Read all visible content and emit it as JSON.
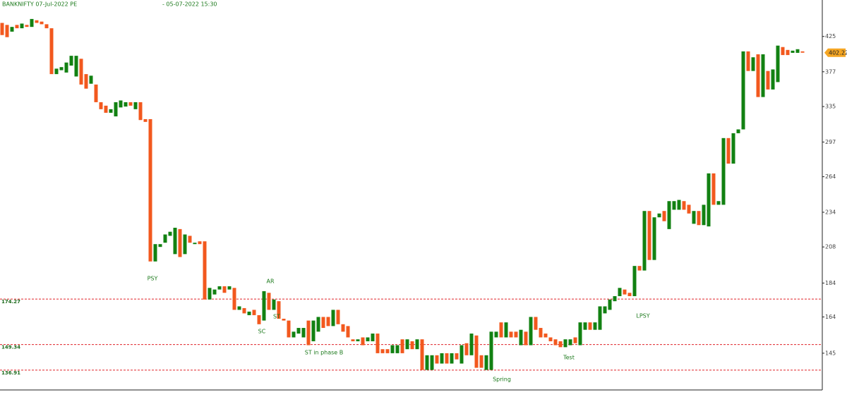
{
  "chart_data": {
    "type": "candlestick",
    "title": "BANKNIFTY 07-Jul-2022 PE",
    "subtitle": "- 05-07-2022 15:30",
    "log_scale": true,
    "ylim": [
      128,
      481
    ],
    "yticks": [
      145,
      164,
      184,
      208,
      234,
      264,
      297,
      335,
      377,
      425
    ],
    "up_color": "#128112",
    "down_color": "#f2581e",
    "level_color": "#e0242a",
    "levels": [
      174.27,
      149.34,
      136.91
    ],
    "annotations": [
      "PSY",
      "AR",
      "ST",
      "SC",
      "ST in phase B",
      "Spring",
      "Test",
      "LPSY"
    ],
    "open": [
      445,
      442,
      432,
      442,
      437,
      442,
      439,
      449,
      447,
      443,
      437,
      374,
      379,
      376,
      385,
      371,
      394,
      374,
      362,
      361,
      340,
      336,
      328,
      324,
      334,
      335,
      340,
      332,
      340,
      321,
      321,
      198,
      208,
      211,
      216,
      203,
      221,
      203,
      216,
      210,
      212,
      212,
      174,
      177,
      180,
      182,
      180,
      181,
      168,
      169,
      165,
      168,
      165,
      162,
      178,
      168,
      173,
      163,
      162,
      153,
      155,
      153,
      162,
      151,
      156,
      164,
      164,
      159,
      168,
      160,
      159,
      152,
      151,
      153,
      151,
      151,
      155,
      147,
      147,
      145,
      145,
      152,
      147,
      151,
      147,
      152,
      137,
      137,
      144,
      140,
      145,
      140,
      145,
      140,
      150,
      144,
      154,
      144,
      137,
      137,
      153,
      161,
      153,
      156,
      156,
      149,
      156,
      149,
      164,
      158,
      155,
      153,
      152,
      151,
      148,
      149,
      153,
      149,
      157,
      161,
      157,
      157,
      166,
      168,
      173,
      176,
      180,
      178,
      176,
      195,
      192,
      235,
      199,
      230,
      235,
      221,
      236,
      236,
      243,
      240,
      225,
      235,
      224,
      223,
      267,
      240,
      240,
      301,
      276,
      306,
      310,
      404,
      378,
      400,
      346,
      378,
      355,
      364,
      410,
      406,
      402,
      402,
      404
    ],
    "close": [
      427,
      424,
      439,
      437,
      444,
      439,
      451,
      445,
      443,
      437,
      374,
      381,
      383,
      389,
      398,
      398,
      361,
      356,
      372,
      340,
      332,
      328,
      332,
      340,
      342,
      340,
      336,
      340,
      320,
      318,
      198,
      210,
      210,
      217,
      219,
      222,
      201,
      217,
      211,
      211,
      210,
      174,
      181,
      180,
      182,
      178,
      182,
      168,
      170,
      166,
      167,
      165,
      160,
      179,
      168,
      174,
      163,
      162,
      153,
      156,
      158,
      158,
      149,
      162,
      164,
      158,
      159,
      168,
      160,
      156,
      153,
      151,
      152,
      149,
      153,
      155,
      145,
      145,
      145,
      149,
      149,
      145,
      152,
      147,
      152,
      137,
      144,
      144,
      140,
      145,
      140,
      145,
      142,
      149,
      144,
      155,
      138,
      138,
      144,
      156,
      156,
      153,
      161,
      153,
      153,
      157,
      149,
      164,
      157,
      153,
      153,
      151,
      149,
      148,
      152,
      152,
      150,
      161,
      161,
      157,
      161,
      170,
      170,
      174,
      176,
      181,
      177,
      176,
      195,
      192,
      235,
      199,
      230,
      233,
      227,
      243,
      243,
      244,
      236,
      233,
      235,
      224,
      240,
      267,
      240,
      243,
      301,
      276,
      306,
      310,
      404,
      378,
      396,
      346,
      400,
      355,
      380,
      412,
      399,
      399,
      405,
      407,
      402.22
    ]
  }
}
